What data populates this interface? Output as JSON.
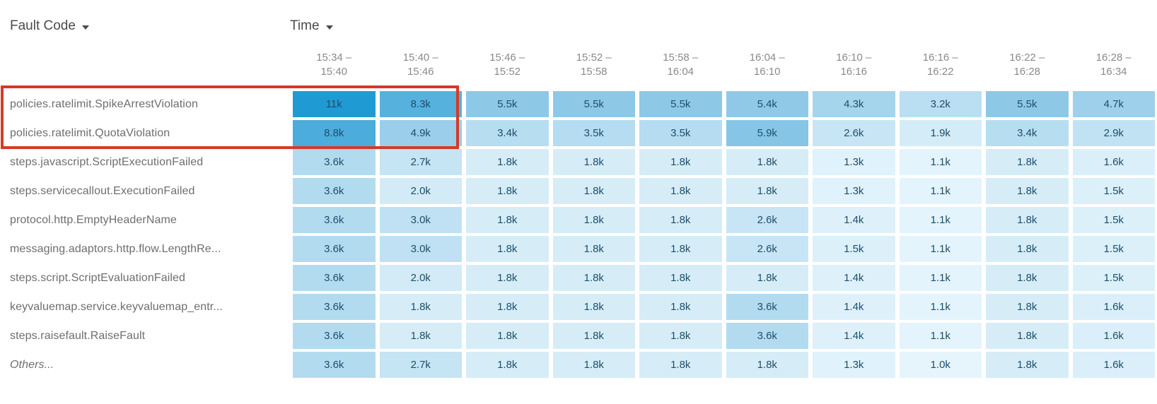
{
  "header": {
    "row_dimension_label": "Fault Code",
    "column_dimension_label": "Time"
  },
  "annotation": {
    "type": "highlight-box",
    "color": "#d53a27",
    "rows_highlighted": [
      "policies.ratelimit.SpikeArrestViolation",
      "policies.ratelimit.QuotaViolation"
    ],
    "columns_highlighted": [
      "15:34 – 15:40",
      "15:40 – 15:46"
    ]
  },
  "chart_data": {
    "type": "heatmap",
    "xlabel": "Time",
    "ylabel": "Fault Code",
    "columns": [
      "15:34 – 15:40",
      "15:40 – 15:46",
      "15:46 – 15:52",
      "15:52 – 15:58",
      "15:58 – 16:04",
      "16:04 – 16:10",
      "16:10 – 16:16",
      "16:16 – 16:22",
      "16:22 – 16:28",
      "16:28 – 16:34"
    ],
    "rows": [
      "policies.ratelimit.SpikeArrestViolation",
      "policies.ratelimit.QuotaViolation",
      "steps.javascript.ScriptExecutionFailed",
      "steps.servicecallout.ExecutionFailed",
      "protocol.http.EmptyHeaderName",
      "messaging.adaptors.http.flow.LengthRe...",
      "steps.script.ScriptEvaluationFailed",
      "keyvaluemap.service.keyvaluemap_entr...",
      "steps.raisefault.RaiseFault",
      "Others..."
    ],
    "italic_row_index": 9,
    "values": [
      [
        "11k",
        "8.3k",
        "5.5k",
        "5.5k",
        "5.5k",
        "5.4k",
        "4.3k",
        "3.2k",
        "5.5k",
        "4.7k"
      ],
      [
        "8.8k",
        "4.9k",
        "3.4k",
        "3.5k",
        "3.5k",
        "5.9k",
        "2.6k",
        "1.9k",
        "3.4k",
        "2.9k"
      ],
      [
        "3.6k",
        "2.7k",
        "1.8k",
        "1.8k",
        "1.8k",
        "1.8k",
        "1.3k",
        "1.1k",
        "1.8k",
        "1.6k"
      ],
      [
        "3.6k",
        "2.0k",
        "1.8k",
        "1.8k",
        "1.8k",
        "1.8k",
        "1.3k",
        "1.1k",
        "1.8k",
        "1.5k"
      ],
      [
        "3.6k",
        "3.0k",
        "1.8k",
        "1.8k",
        "1.8k",
        "2.6k",
        "1.4k",
        "1.1k",
        "1.8k",
        "1.5k"
      ],
      [
        "3.6k",
        "3.0k",
        "1.8k",
        "1.8k",
        "1.8k",
        "2.6k",
        "1.5k",
        "1.1k",
        "1.8k",
        "1.5k"
      ],
      [
        "3.6k",
        "2.0k",
        "1.8k",
        "1.8k",
        "1.8k",
        "1.8k",
        "1.4k",
        "1.1k",
        "1.8k",
        "1.5k"
      ],
      [
        "3.6k",
        "1.8k",
        "1.8k",
        "1.8k",
        "1.8k",
        "3.6k",
        "1.4k",
        "1.1k",
        "1.8k",
        "1.6k"
      ],
      [
        "3.6k",
        "1.8k",
        "1.8k",
        "1.8k",
        "1.8k",
        "3.6k",
        "1.4k",
        "1.1k",
        "1.8k",
        "1.6k"
      ],
      [
        "3.6k",
        "2.7k",
        "1.8k",
        "1.8k",
        "1.8k",
        "1.8k",
        "1.3k",
        "1.0k",
        "1.8k",
        "1.6k"
      ]
    ],
    "value_unit": "k",
    "color_scale": {
      "stops": [
        {
          "value": 1.0,
          "color": "#e6f5fc"
        },
        {
          "value": 5.5,
          "color": "#8ec8e7"
        },
        {
          "value": 11.0,
          "color": "#209ad3"
        }
      ],
      "cell_text_color": "#1d4e6b"
    }
  }
}
